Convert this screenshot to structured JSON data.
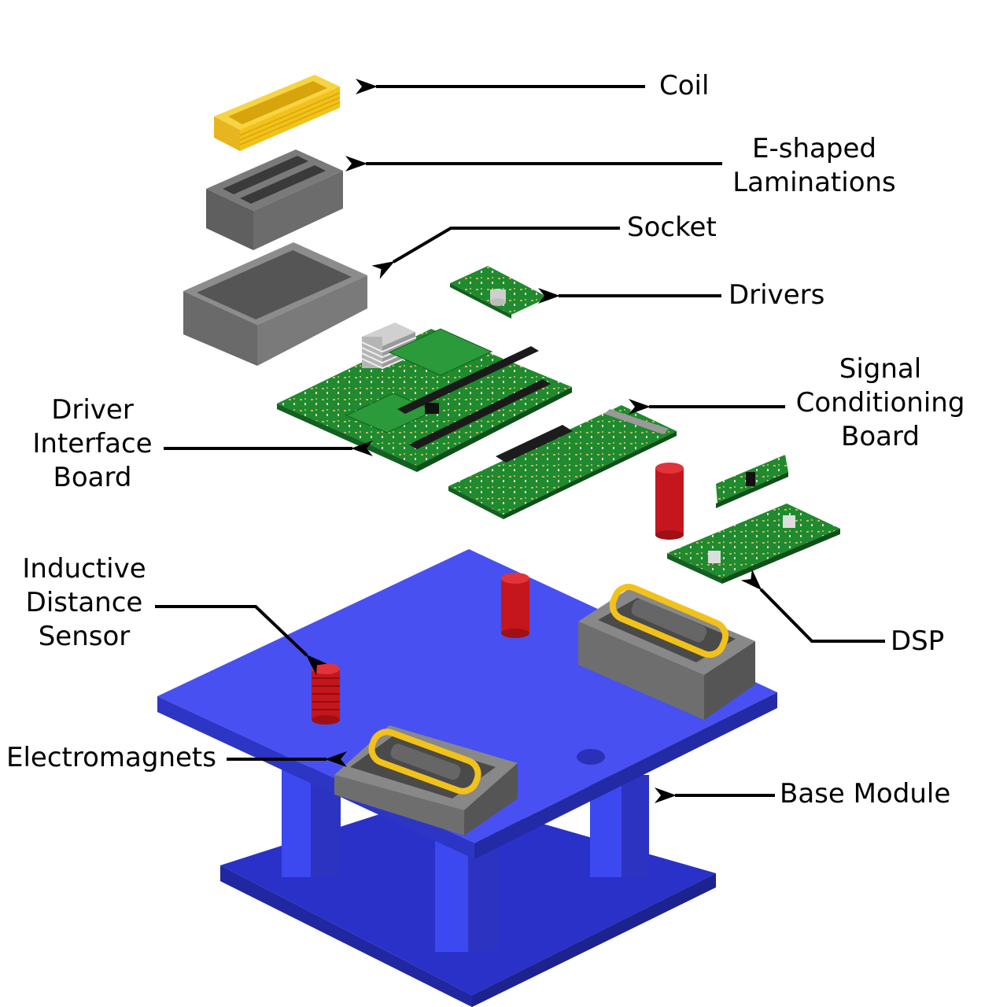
{
  "colors": {
    "base_blue": "#3b46e8",
    "base_blue_dark": "#2a31b8",
    "pcb_green": "#1f8a2e",
    "coil_yellow": "#f2c21a",
    "lamination_gray": "#6b6b6b",
    "sensor_red": "#c4161c",
    "arrow": "#000000"
  },
  "labels": {
    "coil": [
      "Coil"
    ],
    "e_shaped_laminations": [
      "E-shaped",
      "Laminations"
    ],
    "socket": [
      "Socket"
    ],
    "drivers": [
      "Drivers"
    ],
    "driver_interface_board": [
      "Driver",
      "Interface",
      "Board"
    ],
    "signal_conditioning_board": [
      "Signal",
      "Conditioning",
      "Board"
    ],
    "inductive_distance_sensor": [
      "Inductive",
      "Distance",
      "Sensor"
    ],
    "dsp": [
      "DSP"
    ],
    "electromagnets": [
      "Electromagnets"
    ],
    "base_module": [
      "Base Module"
    ]
  }
}
